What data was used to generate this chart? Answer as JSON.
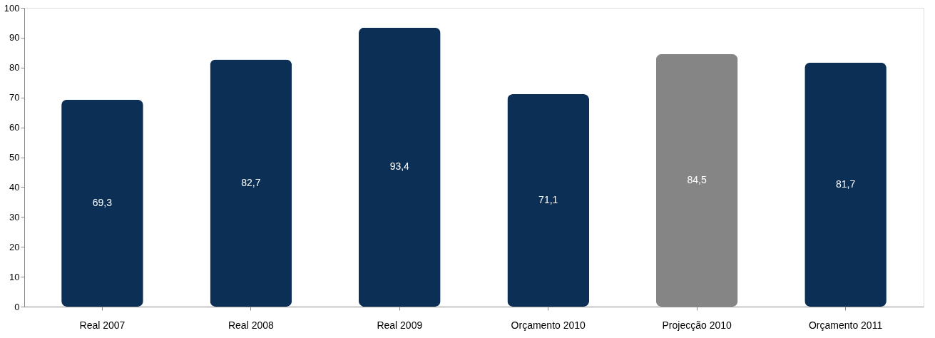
{
  "chart_data": {
    "type": "bar",
    "categories": [
      "Real 2007",
      "Real 2008",
      "Real 2009",
      "Orçamento 2010",
      "Projecção 2010",
      "Orçamento 2011"
    ],
    "values": [
      69.3,
      82.7,
      93.4,
      71.1,
      84.5,
      81.7
    ],
    "colors": [
      "#0b2f55",
      "#0b2f55",
      "#0b2f55",
      "#0b2f55",
      "#858585",
      "#0b2f55"
    ],
    "value_labels": [
      "69,3",
      "82,7",
      "93,4",
      "71,1",
      "84,5",
      "81,7"
    ],
    "ylim": [
      0,
      100
    ],
    "yticks": [
      0,
      10,
      20,
      30,
      40,
      50,
      60,
      70,
      80,
      90,
      100
    ],
    "grid": false
  }
}
